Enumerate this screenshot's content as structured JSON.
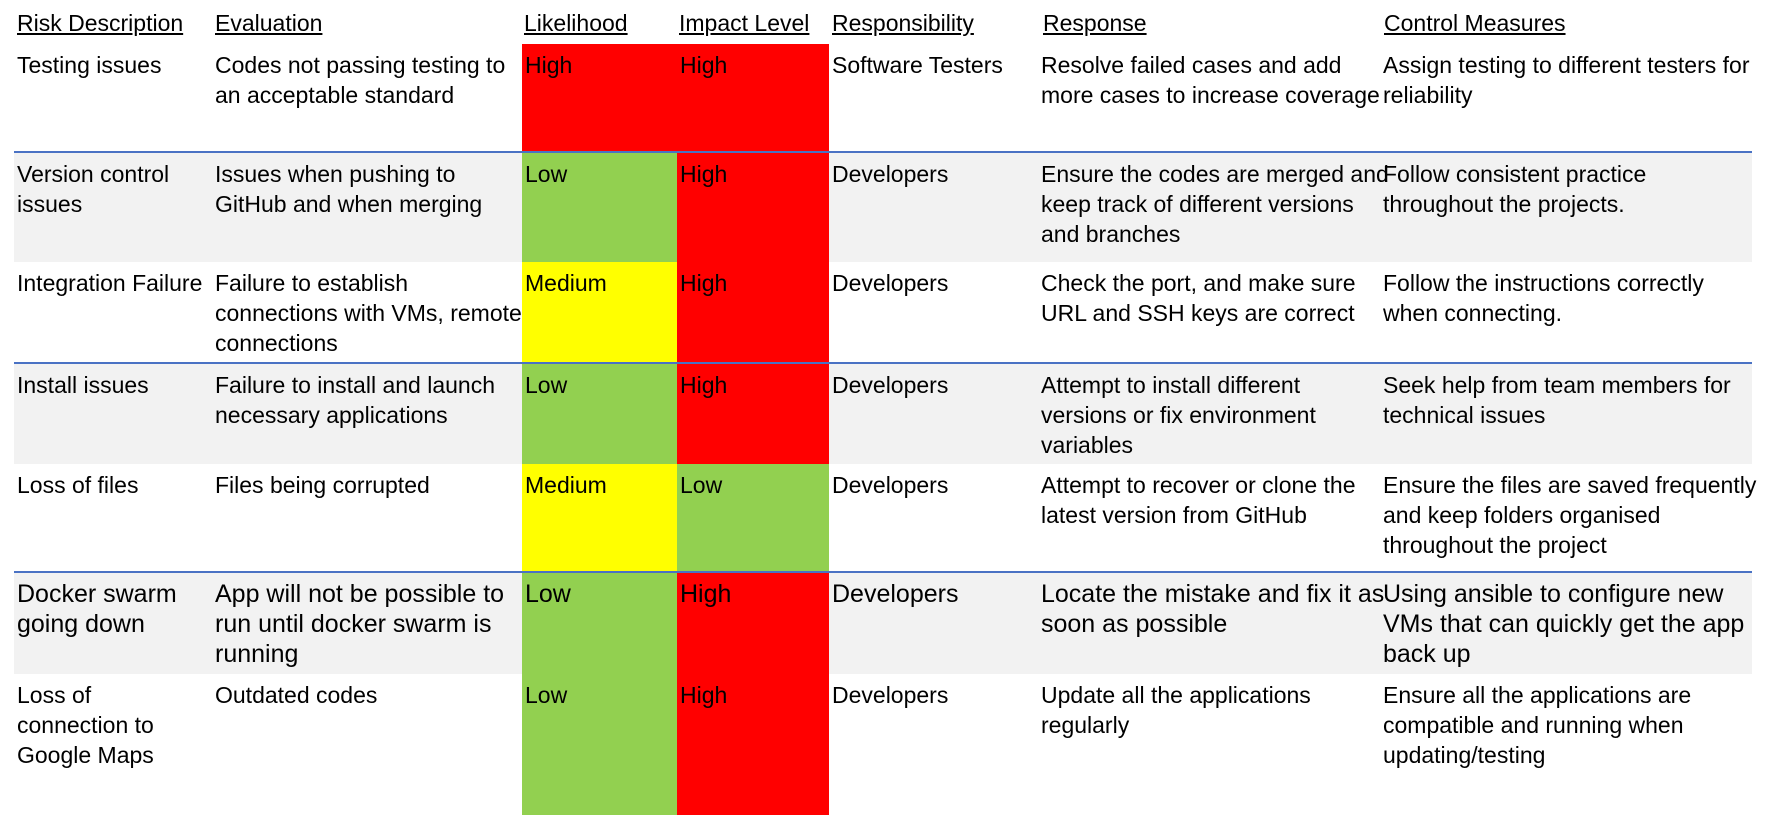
{
  "headers": {
    "risk_description": "Risk Description",
    "evaluation": "Evaluation",
    "likelihood": "Likelihood",
    "impact_level": "Impact Level",
    "responsibility": "Responsibility",
    "response": "Response",
    "control_measures": "Control Measures"
  },
  "colors": {
    "High": "#ff0000",
    "Medium": "#ffff00",
    "Low": "#92d050",
    "row_shade": "#f2f2f2",
    "row_border": "#4a72c4"
  },
  "rows": [
    {
      "risk": "Testing issues",
      "evaluation": "Codes not passing  testing to an acceptable standard",
      "likelihood": "High",
      "impact": "High",
      "responsibility": "Software Testers",
      "response": "Resolve failed cases and add more cases to increase coverage",
      "control": "Assign testing to different testers for reliability"
    },
    {
      "risk": "Version control issues",
      "evaluation": "Issues when pushing to GitHub and when merging",
      "likelihood": "Low",
      "impact": "High",
      "responsibility": "Developers",
      "response": "Ensure the codes are merged and keep track of different versions and branches",
      "control": "Follow consistent practice throughout the projects."
    },
    {
      "risk": "Integration Failure",
      "evaluation": "Failure to establish connections with VMs, remote connections",
      "likelihood": "Medium",
      "impact": "High",
      "responsibility": "Developers",
      "response": "Check the port, and make sure URL and SSH keys are correct",
      "control": "Follow the instructions correctly when connecting."
    },
    {
      "risk": "Install issues",
      "evaluation": "Failure to install and launch necessary applications",
      "likelihood": "Low",
      "impact": "High",
      "responsibility": "Developers",
      "response": "Attempt to install different versions or fix environment variables",
      "control": "Seek help from team members for technical issues"
    },
    {
      "risk": "Loss of files",
      "evaluation": "Files being corrupted",
      "likelihood": "Medium",
      "impact": "Low",
      "responsibility": "Developers",
      "response": "Attempt to recover or clone the latest version from GitHub",
      "control": "Ensure the files are saved frequently and keep folders organised throughout the project"
    },
    {
      "risk": "Docker swarm going down",
      "evaluation": "App will not be possible to run until docker swarm is running",
      "likelihood": "Low",
      "impact": "High",
      "responsibility": "Developers",
      "response": "Locate the mistake and fix it as soon as possible",
      "control": "Using ansible to configure new VMs that can quickly get the app back up"
    },
    {
      "risk": "Loss of connection to Google Maps",
      "evaluation": "Outdated codes",
      "likelihood": "Low",
      "impact": "High",
      "responsibility": "Developers",
      "response": "Update all the applications regularly",
      "control": "Ensure all the applications are compatible and running when updating/testing"
    }
  ]
}
